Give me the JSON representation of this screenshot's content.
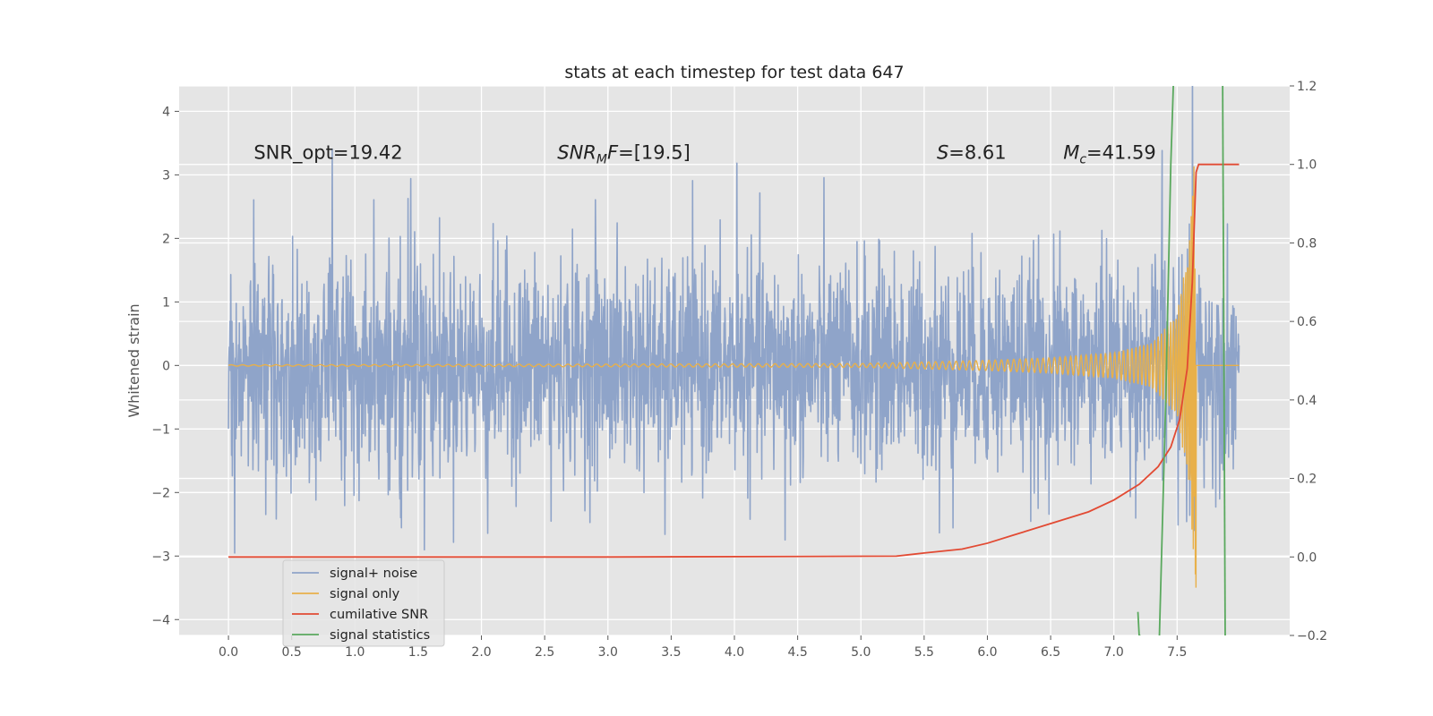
{
  "chart_data": {
    "type": "line",
    "title": "stats at each timestep for test data 647",
    "xlabel": "",
    "ylabel": "Whitened strain",
    "y2label": "",
    "xlim": [
      -0.39,
      8.39
    ],
    "ylim": [
      -4.25,
      4.4
    ],
    "y2lim": [
      -0.2,
      1.2
    ],
    "x_ticks": [
      "0.0",
      "0.5",
      "1.0",
      "1.5",
      "2.0",
      "2.5",
      "3.0",
      "3.5",
      "4.0",
      "4.5",
      "5.0",
      "5.5",
      "6.0",
      "6.5",
      "7.0",
      "7.5"
    ],
    "y_ticks": [
      "4",
      "3",
      "2",
      "1",
      "0",
      "−1",
      "−2",
      "−3",
      "−4"
    ],
    "y2_ticks": [
      "1.2",
      "1.0",
      "0.8",
      "0.6",
      "0.4",
      "0.2",
      "0.0",
      "−0.2"
    ],
    "grid": true,
    "legend_position": "lower-left",
    "annotations": [
      {
        "text": "SNR_opt=19.42",
        "x": 0.2,
        "y": 3.25
      },
      {
        "text": "SNR_MF=[19.5]",
        "x": 2.6,
        "y": 3.25,
        "italic_prefix": "SNR",
        "sub": "M",
        "suffix": "F=[19.5]"
      },
      {
        "text": "S=8.61",
        "x": 5.6,
        "y": 3.25,
        "italic_prefix": "S",
        "suffix": "=8.61"
      },
      {
        "text": "M_c=41.59",
        "x": 6.6,
        "y": 3.25,
        "italic_prefix": "M",
        "sub": "c",
        "suffix": "=41.59"
      }
    ],
    "series": [
      {
        "name": "signal+ noise",
        "color": "#8fa4c9",
        "axis": "left",
        "description_range": [
          -3.0,
          3.4
        ],
        "x_range": [
          0.0,
          7.99
        ],
        "peaks": [
          [
            0.05,
            -2.95
          ],
          [
            0.2,
            2.6
          ],
          [
            0.82,
            3.4
          ],
          [
            1.15,
            2.6
          ],
          [
            1.44,
            2.95
          ],
          [
            1.55,
            -2.9
          ],
          [
            2.05,
            -2.65
          ],
          [
            2.55,
            -2.45
          ],
          [
            2.9,
            2.6
          ],
          [
            3.45,
            -2.65
          ],
          [
            4.02,
            3.2
          ],
          [
            4.4,
            -2.75
          ],
          [
            5.62,
            -2.6
          ],
          [
            6.4,
            -2.3
          ],
          [
            7.38,
            3.3
          ],
          [
            7.62,
            4.0
          ],
          [
            7.6,
            -3.3
          ]
        ]
      },
      {
        "name": "signal only",
        "color": "#e8b04a",
        "axis": "left",
        "chirp_end": 7.65,
        "envelope": [
          [
            0.0,
            0.01
          ],
          [
            5.0,
            0.03
          ],
          [
            6.0,
            0.08
          ],
          [
            6.5,
            0.12
          ],
          [
            7.0,
            0.2
          ],
          [
            7.3,
            0.35
          ],
          [
            7.5,
            0.8
          ],
          [
            7.6,
            2.0
          ],
          [
            7.64,
            3.4
          ]
        ],
        "min_value": -3.85
      },
      {
        "name": "cumilative SNR",
        "color": "#e24a33",
        "axis": "right",
        "x": [
          0.0,
          3.0,
          5.28,
          5.5,
          5.8,
          6.0,
          6.2,
          6.5,
          6.8,
          7.0,
          7.2,
          7.35,
          7.45,
          7.52,
          7.58,
          7.62,
          7.65,
          7.67,
          7.99
        ],
        "values": [
          0.0,
          0.0,
          0.002,
          0.01,
          0.02,
          0.035,
          0.055,
          0.085,
          0.115,
          0.145,
          0.185,
          0.23,
          0.28,
          0.35,
          0.48,
          0.7,
          0.98,
          1.0,
          1.0
        ]
      },
      {
        "name": "signal statistics",
        "color": "#5aa95e",
        "axis": "right",
        "segments": [
          {
            "x": [
              7.19,
              7.2,
              7.21
            ],
            "values": [
              -0.14,
              -0.2,
              -0.2
            ]
          },
          {
            "x": [
              7.36,
              7.41,
              7.45,
              7.47
            ],
            "values": [
              -0.2,
              0.4,
              1.0,
              1.2
            ]
          },
          {
            "x": [
              7.86,
              7.88
            ],
            "values": [
              1.2,
              -0.2
            ]
          }
        ]
      }
    ]
  }
}
